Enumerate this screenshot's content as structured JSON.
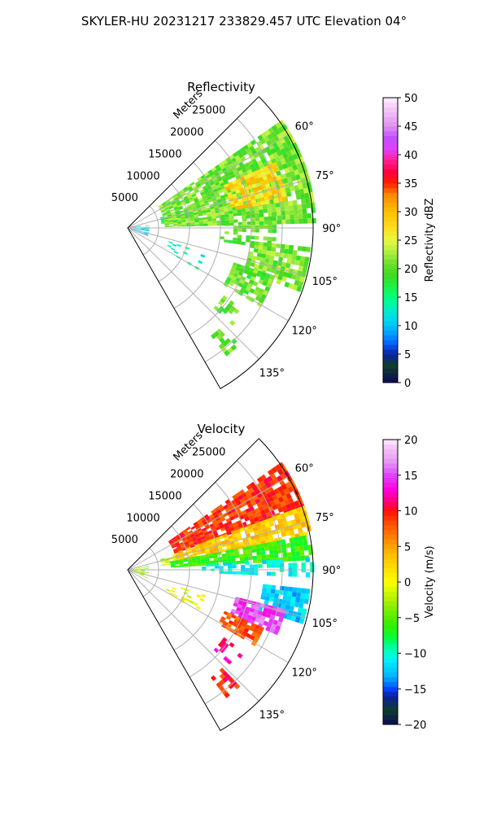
{
  "figure": {
    "suptitle": "SKYLER-HU  20231217  233829.457 UTC Elevation 04°"
  },
  "chart_data": [
    {
      "type": "heatmap",
      "panel_title": "Reflectivity",
      "projection": "polar-sector",
      "theta_range_deg": [
        45,
        150
      ],
      "theta_ticks": [
        "60°",
        "75°",
        "90°",
        "105°",
        "120°",
        "135°"
      ],
      "theta_tick_values": [
        60,
        75,
        90,
        105,
        120,
        135
      ],
      "r_label": "Meters",
      "r_ticks": [
        "5000",
        "10000",
        "15000",
        "20000",
        "25000"
      ],
      "r_tick_values": [
        5000,
        10000,
        15000,
        20000,
        25000
      ],
      "r_max": 30000,
      "grid": true,
      "colorbar": {
        "label": "Reflectivity dBZ",
        "range": [
          0,
          50
        ],
        "ticks": [
          "0",
          "5",
          "10",
          "15",
          "20",
          "25",
          "30",
          "35",
          "40",
          "45",
          "50"
        ],
        "tick_values": [
          0,
          5,
          10,
          15,
          20,
          25,
          30,
          35,
          40,
          45,
          50
        ],
        "colors": [
          [
            0,
            "#0a0a55"
          ],
          [
            3,
            "#0e3f2b"
          ],
          [
            5,
            "#0a1fa0"
          ],
          [
            7,
            "#0066ff"
          ],
          [
            9,
            "#00aaff"
          ],
          [
            11,
            "#00d8f0"
          ],
          [
            13,
            "#00f0c0"
          ],
          [
            15,
            "#00ff80"
          ],
          [
            17,
            "#20f040"
          ],
          [
            19,
            "#40d820"
          ],
          [
            21,
            "#70e030"
          ],
          [
            23,
            "#b0f040"
          ],
          [
            25,
            "#e8f840"
          ],
          [
            27,
            "#ffe020"
          ],
          [
            30,
            "#ffc000"
          ],
          [
            33,
            "#ff8800"
          ],
          [
            35,
            "#ff2000"
          ],
          [
            37,
            "#ff0040"
          ],
          [
            39,
            "#ff2090"
          ],
          [
            41,
            "#e040ff"
          ],
          [
            43,
            "#c050ff"
          ],
          [
            45,
            "#e090f0"
          ],
          [
            48,
            "#f4c8f8"
          ],
          [
            50,
            "#ffeeff"
          ]
        ]
      },
      "echo_regions": [
        {
          "r": [
            0,
            3200
          ],
          "theta": [
            80,
            112
          ],
          "value": 11,
          "spread": 3,
          "density": 0.55
        },
        {
          "r": [
            5500,
            9000
          ],
          "theta": [
            72,
            82
          ],
          "value": 17,
          "spread": 3,
          "density": 0.85
        },
        {
          "r": [
            6000,
            30000
          ],
          "theta": [
            55,
            88
          ],
          "value": 21,
          "spread": 3,
          "density": 0.9
        },
        {
          "r": [
            17000,
            26000
          ],
          "theta": [
            66,
            80
          ],
          "value": 28,
          "spread": 3,
          "density": 0.8
        },
        {
          "r": [
            15000,
            24000
          ],
          "theta": [
            84,
            98
          ],
          "value": 20,
          "spread": 3,
          "density": 0.45
        },
        {
          "r": [
            20000,
            29500
          ],
          "theta": [
            96,
            110
          ],
          "value": 21,
          "spread": 3,
          "density": 0.85
        },
        {
          "r": [
            18000,
            25000
          ],
          "theta": [
            108,
            120
          ],
          "value": 20,
          "spread": 3,
          "density": 0.8
        },
        {
          "r": [
            7000,
            13000
          ],
          "theta": [
            108,
            120
          ],
          "value": 13,
          "spread": 3,
          "density": 0.25
        },
        {
          "r": [
            19000,
            23000
          ],
          "theta": [
            125,
            132
          ],
          "value": 20,
          "spread": 3,
          "density": 0.4
        },
        {
          "r": [
            22000,
            26000
          ],
          "theta": [
            136,
            142
          ],
          "value": 20,
          "spread": 3,
          "density": 0.6
        }
      ]
    },
    {
      "type": "heatmap",
      "panel_title": "Velocity",
      "projection": "polar-sector",
      "theta_range_deg": [
        45,
        150
      ],
      "theta_ticks": [
        "60°",
        "75°",
        "90°",
        "105°",
        "120°",
        "135°"
      ],
      "theta_tick_values": [
        60,
        75,
        90,
        105,
        120,
        135
      ],
      "r_label": "Meters",
      "r_ticks": [
        "5000",
        "10000",
        "15000",
        "20000",
        "25000"
      ],
      "r_tick_values": [
        5000,
        10000,
        15000,
        20000,
        25000
      ],
      "r_max": 30000,
      "grid": true,
      "colorbar": {
        "label": "Velocity (m/s)",
        "range": [
          -20,
          20
        ],
        "ticks": [
          "−20",
          "−15",
          "−10",
          "−5",
          "0",
          "5",
          "10",
          "15",
          "20"
        ],
        "tick_values": [
          -20,
          -15,
          -10,
          -5,
          0,
          5,
          10,
          15,
          20
        ],
        "colors": [
          [
            -20,
            "#0a0a55"
          ],
          [
            -18,
            "#0e3f2b"
          ],
          [
            -16,
            "#0a1fa0"
          ],
          [
            -15,
            "#0044ff"
          ],
          [
            -14,
            "#0088ff"
          ],
          [
            -13,
            "#00bbff"
          ],
          [
            -11,
            "#00eeff"
          ],
          [
            -10,
            "#00ffcc"
          ],
          [
            -9,
            "#00ff99"
          ],
          [
            -8,
            "#00ff44"
          ],
          [
            -6,
            "#33ee00"
          ],
          [
            -4,
            "#77ee00"
          ],
          [
            -2,
            "#bbf400"
          ],
          [
            0,
            "#ffff00"
          ],
          [
            2,
            "#ffdd00"
          ],
          [
            4,
            "#ffbb00"
          ],
          [
            6,
            "#ff8800"
          ],
          [
            8,
            "#ff5500"
          ],
          [
            10,
            "#ff1100"
          ],
          [
            11,
            "#ff0066"
          ],
          [
            13,
            "#ff00dd"
          ],
          [
            15,
            "#dd44ff"
          ],
          [
            17,
            "#e89af2"
          ],
          [
            19,
            "#f4c8f8"
          ],
          [
            20,
            "#ffeeff"
          ]
        ]
      },
      "echo_regions": [
        {
          "r": [
            0,
            3200
          ],
          "theta": [
            80,
            112
          ],
          "value": -3,
          "spread": 3,
          "density": 0.55
        },
        {
          "r": [
            5500,
            9000
          ],
          "theta": [
            72,
            82
          ],
          "value": -2,
          "spread": 2,
          "density": 0.85
        },
        {
          "r": [
            8000,
            30000
          ],
          "theta": [
            55,
            70
          ],
          "value": 9,
          "spread": 2,
          "density": 0.9
        },
        {
          "r": [
            8000,
            30000
          ],
          "theta": [
            70,
            79
          ],
          "value": 3,
          "spread": 2,
          "density": 0.9
        },
        {
          "r": [
            7000,
            30000
          ],
          "theta": [
            79,
            86
          ],
          "value": -6,
          "spread": 2,
          "density": 0.85
        },
        {
          "r": [
            12000,
            30000
          ],
          "theta": [
            86,
            92
          ],
          "value": -11,
          "spread": 2,
          "density": 0.5
        },
        {
          "r": [
            22000,
            29500
          ],
          "theta": [
            96,
            106
          ],
          "value": -12,
          "spread": 2,
          "density": 0.85
        },
        {
          "r": [
            18000,
            26000
          ],
          "theta": [
            104,
            113
          ],
          "value": 15,
          "spread": 2,
          "density": 0.85
        },
        {
          "r": [
            17000,
            23500
          ],
          "theta": [
            113,
            120
          ],
          "value": 8,
          "spread": 2,
          "density": 0.85
        },
        {
          "r": [
            7000,
            13000
          ],
          "theta": [
            108,
            120
          ],
          "value": 0,
          "spread": 2,
          "density": 0.25
        },
        {
          "r": [
            19000,
            23000
          ],
          "theta": [
            125,
            132
          ],
          "value": 12,
          "spread": 2,
          "density": 0.45
        },
        {
          "r": [
            22000,
            26000
          ],
          "theta": [
            136,
            142
          ],
          "value": 9,
          "spread": 2,
          "density": 0.6
        }
      ]
    }
  ]
}
